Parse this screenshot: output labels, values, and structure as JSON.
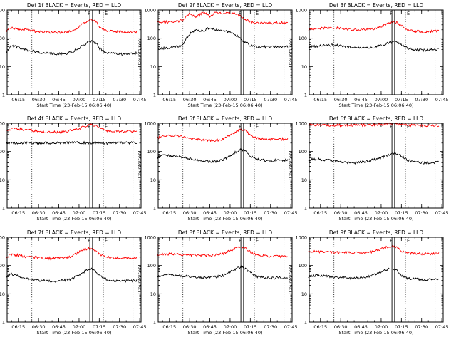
{
  "chart_data": [
    {
      "type": "line",
      "title": "Det 1f BLACK = Events, RED = LLD",
      "xlabel": "Start Time (23-Feb-15 06:06:40)",
      "ylabel": "Counts/sec",
      "x_ticks": [
        "06:15",
        "06:30",
        "06:45",
        "07:00",
        "07:15",
        "07:30",
        "07:45"
      ],
      "y_ticks": [
        "1",
        "10",
        "100",
        "1000"
      ],
      "ylim": [
        1,
        1000
      ],
      "y_scale": "log",
      "xlim": [
        "06:06:40",
        "07:46:00"
      ],
      "series": [
        {
          "color": "#000000",
          "x": [
            "06:06",
            "06:10",
            "06:20",
            "06:30",
            "06:40",
            "06:50",
            "06:55",
            "07:00",
            "07:05",
            "07:08",
            "07:12",
            "07:15",
            "07:20",
            "07:30",
            "07:40",
            "07:43"
          ],
          "y": [
            32,
            55,
            40,
            32,
            28,
            28,
            33,
            45,
            65,
            80,
            72,
            45,
            30,
            28,
            28,
            30
          ]
        },
        {
          "color": "#ff0000",
          "x": [
            "06:06",
            "06:10",
            "06:20",
            "06:30",
            "06:40",
            "06:50",
            "06:55",
            "07:00",
            "07:05",
            "07:08",
            "07:12",
            "07:15",
            "07:20",
            "07:30",
            "07:40",
            "07:43"
          ],
          "y": [
            185,
            230,
            200,
            170,
            160,
            165,
            185,
            250,
            370,
            460,
            400,
            250,
            180,
            170,
            165,
            170
          ]
        }
      ],
      "markers": {
        "dotted": [
          "06:25",
          "07:18",
          "07:40"
        ],
        "solid": [
          "07:08",
          "07:10"
        ],
        "labels": [
          "F",
          "E"
        ]
      }
    },
    {
      "type": "line",
      "title": "Det 2f BLACK = Events, RED = LLD",
      "xlabel": "Start Time (23-Feb-15 06:06:40)",
      "ylabel": "Counts/sec",
      "x_ticks": [
        "06:15",
        "06:30",
        "06:45",
        "07:00",
        "07:15",
        "07:30",
        "07:45"
      ],
      "y_ticks": [
        "1",
        "10",
        "100",
        "1000"
      ],
      "ylim": [
        1,
        1000
      ],
      "y_scale": "log",
      "xlim": [
        "06:06:40",
        "07:46:00"
      ],
      "series": [
        {
          "color": "#000000",
          "x": [
            "06:06",
            "06:15",
            "06:25",
            "06:30",
            "06:35",
            "06:40",
            "06:45",
            "06:50",
            "06:55",
            "07:00",
            "07:05",
            "07:10",
            "07:15",
            "07:20",
            "07:30",
            "07:43"
          ],
          "y": [
            45,
            45,
            55,
            140,
            200,
            180,
            230,
            200,
            190,
            160,
            120,
            80,
            55,
            50,
            50,
            50
          ]
        },
        {
          "color": "#ff0000",
          "x": [
            "06:06",
            "06:15",
            "06:25",
            "06:30",
            "06:35",
            "06:40",
            "06:45",
            "06:50",
            "06:55",
            "07:00",
            "07:05",
            "07:10",
            "07:15",
            "07:20",
            "07:30",
            "07:43"
          ],
          "y": [
            380,
            380,
            420,
            750,
            550,
            820,
            600,
            820,
            780,
            800,
            700,
            500,
            380,
            350,
            350,
            360
          ]
        }
      ],
      "markers": {
        "dotted": [
          "06:25",
          "07:18",
          "07:40"
        ],
        "solid": [
          "07:08",
          "07:10"
        ],
        "labels": [
          "F",
          "E"
        ]
      }
    },
    {
      "type": "line",
      "title": "Det 3f BLACK = Events, RED = LLD",
      "xlabel": "Start Time (23-Feb-15 06:06:40)",
      "ylabel": "Counts/sec",
      "x_ticks": [
        "06:15",
        "06:30",
        "06:45",
        "07:00",
        "07:15",
        "07:30",
        "07:45"
      ],
      "y_ticks": [
        "1",
        "10",
        "100",
        "1000"
      ],
      "ylim": [
        1,
        1000
      ],
      "y_scale": "log",
      "xlim": [
        "06:06:40",
        "07:46:00"
      ],
      "series": [
        {
          "color": "#000000",
          "x": [
            "06:06",
            "06:15",
            "06:25",
            "06:35",
            "06:45",
            "06:55",
            "07:00",
            "07:05",
            "07:10",
            "07:15",
            "07:20",
            "07:30",
            "07:43"
          ],
          "y": [
            48,
            55,
            58,
            50,
            45,
            48,
            55,
            68,
            78,
            60,
            42,
            38,
            40
          ]
        },
        {
          "color": "#ff0000",
          "x": [
            "06:06",
            "06:15",
            "06:25",
            "06:35",
            "06:45",
            "06:55",
            "07:00",
            "07:05",
            "07:10",
            "07:15",
            "07:20",
            "07:30",
            "07:43"
          ],
          "y": [
            200,
            230,
            240,
            210,
            200,
            220,
            260,
            330,
            380,
            280,
            190,
            170,
            180
          ]
        }
      ],
      "markers": {
        "dotted": [
          "06:25",
          "07:18",
          "07:40"
        ],
        "solid": [
          "07:08",
          "07:10"
        ],
        "labels": [
          "F",
          "E"
        ]
      }
    },
    {
      "type": "line",
      "title": "Det 4f BLACK = Events, RED = LLD",
      "xlabel": "Start Time (23-Feb-15 06:06:40)",
      "ylabel": "Counts/sec",
      "x_ticks": [
        "06:15",
        "06:30",
        "06:45",
        "07:00",
        "07:15",
        "07:30",
        "07:45"
      ],
      "y_ticks": [
        "1",
        "10",
        "100",
        "1000"
      ],
      "ylim": [
        1,
        1000
      ],
      "y_scale": "log",
      "xlim": [
        "06:06:40",
        "07:46:00"
      ],
      "series": [
        {
          "color": "#000000",
          "x": [
            "06:06",
            "06:20",
            "06:40",
            "07:00",
            "07:20",
            "07:43"
          ],
          "y": [
            200,
            205,
            200,
            205,
            200,
            205
          ]
        },
        {
          "color": "#ff0000",
          "x": [
            "06:06",
            "06:10",
            "06:20",
            "06:30",
            "06:40",
            "06:50",
            "07:00",
            "07:05",
            "07:10",
            "07:15",
            "07:20",
            "07:30",
            "07:43"
          ],
          "y": [
            560,
            650,
            600,
            520,
            480,
            510,
            640,
            800,
            880,
            700,
            560,
            520,
            530
          ]
        }
      ],
      "markers": {
        "dotted": [
          "06:25",
          "07:18",
          "07:40"
        ],
        "solid": [
          "07:08",
          "07:10"
        ],
        "labels": [
          "F",
          "E"
        ]
      }
    },
    {
      "type": "line",
      "title": "Det 5f BLACK = Events, RED = LLD",
      "xlabel": "Start Time (23-Feb-15 06:06:40)",
      "ylabel": "Counts/sec",
      "x_ticks": [
        "06:15",
        "06:30",
        "06:45",
        "07:00",
        "07:15",
        "07:30",
        "07:45"
      ],
      "y_ticks": [
        "1",
        "10",
        "100",
        "1000"
      ],
      "ylim": [
        1,
        1000
      ],
      "y_scale": "log",
      "xlim": [
        "06:06:40",
        "07:46:00"
      ],
      "series": [
        {
          "color": "#000000",
          "x": [
            "06:06",
            "06:10",
            "06:20",
            "06:30",
            "06:40",
            "06:50",
            "06:55",
            "07:00",
            "07:05",
            "07:08",
            "07:12",
            "07:15",
            "07:20",
            "07:30",
            "07:43"
          ],
          "y": [
            60,
            72,
            70,
            55,
            45,
            45,
            52,
            70,
            100,
            120,
            100,
            70,
            52,
            48,
            50
          ]
        },
        {
          "color": "#ff0000",
          "x": [
            "06:06",
            "06:10",
            "06:20",
            "06:30",
            "06:40",
            "06:50",
            "06:55",
            "07:00",
            "07:05",
            "07:08",
            "07:12",
            "07:15",
            "07:20",
            "07:30",
            "07:43"
          ],
          "y": [
            300,
            350,
            360,
            300,
            250,
            250,
            280,
            380,
            520,
            620,
            520,
            380,
            290,
            270,
            280
          ]
        }
      ],
      "markers": {
        "dotted": [
          "06:25",
          "07:18",
          "07:40"
        ],
        "solid": [
          "07:08",
          "07:10"
        ],
        "labels": [
          "F",
          "E"
        ]
      }
    },
    {
      "type": "line",
      "title": "Det 6f BLACK = Events, RED = LLD",
      "xlabel": "Start Time (23-Feb-15 06:06:40)",
      "ylabel": "Counts/sec",
      "x_ticks": [
        "06:15",
        "06:30",
        "06:45",
        "07:00",
        "07:15",
        "07:30",
        "07:45"
      ],
      "y_ticks": [
        "1",
        "10",
        "100",
        "1000"
      ],
      "ylim": [
        1,
        1000
      ],
      "y_scale": "log",
      "xlim": [
        "06:06:40",
        "07:46:00"
      ],
      "series": [
        {
          "color": "#000000",
          "x": [
            "06:06",
            "06:10",
            "06:20",
            "06:30",
            "06:40",
            "06:50",
            "07:00",
            "07:05",
            "07:10",
            "07:15",
            "07:20",
            "07:30",
            "07:43"
          ],
          "y": [
            50,
            55,
            50,
            42,
            40,
            45,
            60,
            75,
            85,
            70,
            48,
            40,
            42
          ]
        },
        {
          "color": "#ff0000",
          "x": [
            "06:06",
            "06:20",
            "06:40",
            "07:00",
            "07:05",
            "07:10",
            "07:15",
            "07:20",
            "07:30",
            "07:43"
          ],
          "y": [
            880,
            860,
            850,
            900,
            950,
            980,
            920,
            860,
            820,
            830
          ]
        }
      ],
      "markers": {
        "dotted": [
          "06:25",
          "07:18",
          "07:40"
        ],
        "solid": [
          "07:08",
          "07:10"
        ],
        "labels": [
          "F",
          "E"
        ]
      }
    },
    {
      "type": "line",
      "title": "Det 7f BLACK = Events, RED = LLD",
      "xlabel": "Start Time (23-Feb-15 06:06:40)",
      "ylabel": "Counts/sec",
      "x_ticks": [
        "06:15",
        "06:30",
        "06:45",
        "07:00",
        "07:15",
        "07:30",
        "07:45"
      ],
      "y_ticks": [
        "1",
        "10",
        "100",
        "1000"
      ],
      "ylim": [
        1,
        1000
      ],
      "y_scale": "log",
      "xlim": [
        "06:06:40",
        "07:46:00"
      ],
      "series": [
        {
          "color": "#000000",
          "x": [
            "06:06",
            "06:10",
            "06:20",
            "06:30",
            "06:40",
            "06:50",
            "06:55",
            "07:00",
            "07:05",
            "07:08",
            "07:12",
            "07:15",
            "07:20",
            "07:30",
            "07:43"
          ],
          "y": [
            40,
            50,
            35,
            30,
            28,
            30,
            35,
            45,
            65,
            80,
            65,
            45,
            32,
            28,
            30
          ]
        },
        {
          "color": "#ff0000",
          "x": [
            "06:06",
            "06:10",
            "06:20",
            "06:30",
            "06:40",
            "06:50",
            "06:55",
            "07:00",
            "07:05",
            "07:08",
            "07:12",
            "07:15",
            "07:20",
            "07:30",
            "07:43"
          ],
          "y": [
            200,
            250,
            210,
            190,
            180,
            190,
            220,
            300,
            380,
            420,
            350,
            260,
            200,
            180,
            190
          ]
        }
      ],
      "markers": {
        "dotted": [
          "06:25",
          "07:18",
          "07:40"
        ],
        "solid": [
          "07:08",
          "07:10"
        ],
        "labels": [
          "F",
          "E"
        ]
      }
    },
    {
      "type": "line",
      "title": "Det 8f BLACK = Events, RED = LLD",
      "xlabel": "Start Time (23-Feb-15 06:06:40)",
      "ylabel": "Counts/sec",
      "x_ticks": [
        "06:15",
        "06:30",
        "06:45",
        "07:00",
        "07:15",
        "07:30",
        "07:45"
      ],
      "y_ticks": [
        "1",
        "10",
        "100",
        "1000"
      ],
      "ylim": [
        1,
        1000
      ],
      "y_scale": "log",
      "xlim": [
        "06:06:40",
        "07:46:00"
      ],
      "series": [
        {
          "color": "#000000",
          "x": [
            "06:06",
            "06:10",
            "06:20",
            "06:30",
            "06:40",
            "06:50",
            "06:55",
            "07:00",
            "07:05",
            "07:08",
            "07:12",
            "07:15",
            "07:20",
            "07:30",
            "07:43"
          ],
          "y": [
            40,
            48,
            45,
            40,
            38,
            40,
            45,
            60,
            80,
            90,
            75,
            55,
            40,
            36,
            38
          ]
        },
        {
          "color": "#ff0000",
          "x": [
            "06:06",
            "06:10",
            "06:20",
            "06:30",
            "06:40",
            "06:50",
            "06:55",
            "07:00",
            "07:05",
            "07:08",
            "07:12",
            "07:15",
            "07:20",
            "07:30",
            "07:43"
          ],
          "y": [
            230,
            260,
            250,
            240,
            230,
            240,
            270,
            340,
            420,
            460,
            400,
            300,
            230,
            210,
            220
          ]
        }
      ],
      "markers": {
        "dotted": [
          "06:25",
          "07:18",
          "07:40"
        ],
        "solid": [
          "07:08",
          "07:10"
        ],
        "labels": [
          "F",
          "E"
        ]
      }
    },
    {
      "type": "line",
      "title": "Det 9f BLACK = Events, RED = LLD",
      "xlabel": "Start Time (23-Feb-15 06:06:40)",
      "ylabel": "Counts/sec",
      "x_ticks": [
        "06:15",
        "06:30",
        "06:45",
        "07:00",
        "07:15",
        "07:30",
        "07:45"
      ],
      "y_ticks": [
        "1",
        "10",
        "100",
        "1000"
      ],
      "ylim": [
        1,
        1000
      ],
      "y_scale": "log",
      "xlim": [
        "06:06:40",
        "07:46:00"
      ],
      "series": [
        {
          "color": "#000000",
          "x": [
            "06:06",
            "06:10",
            "06:20",
            "06:30",
            "06:40",
            "06:50",
            "06:55",
            "07:00",
            "07:05",
            "07:08",
            "07:12",
            "07:15",
            "07:20",
            "07:30",
            "07:43"
          ],
          "y": [
            40,
            45,
            42,
            38,
            35,
            40,
            48,
            60,
            75,
            80,
            65,
            45,
            35,
            32,
            32
          ]
        },
        {
          "color": "#ff0000",
          "x": [
            "06:06",
            "06:10",
            "06:20",
            "06:30",
            "06:40",
            "06:50",
            "06:55",
            "07:00",
            "07:05",
            "07:08",
            "07:12",
            "07:15",
            "07:20",
            "07:30",
            "07:43"
          ],
          "y": [
            290,
            310,
            300,
            290,
            280,
            290,
            320,
            380,
            460,
            500,
            420,
            330,
            280,
            260,
            270
          ]
        }
      ],
      "markers": {
        "dotted": [
          "06:25",
          "07:18",
          "07:40"
        ],
        "solid": [
          "07:08",
          "07:10"
        ],
        "labels": [
          "F",
          "E"
        ]
      }
    }
  ]
}
